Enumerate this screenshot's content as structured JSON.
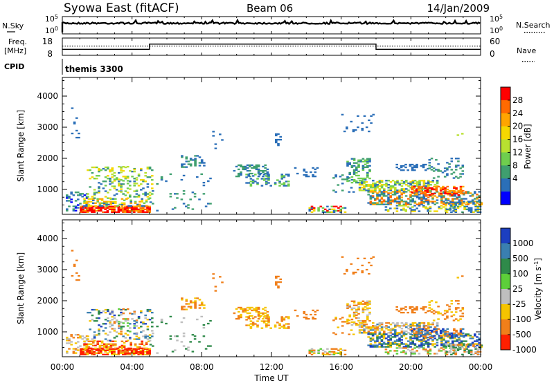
{
  "header": {
    "station": "Syowa East (fitACF)",
    "beam": "Beam 06",
    "date": "14/Jan/2009"
  },
  "left_labels": {
    "nsky": "N.Sky",
    "freq_line1": "Freq.",
    "freq_line2": "[MHz]",
    "cpid": "CPID"
  },
  "right_labels": {
    "nsearch": "N.Search",
    "nave": "Nave"
  },
  "noise_axis": {
    "left_ticks": [
      "10^5",
      "10^0"
    ],
    "right_ticks": [
      "10^5",
      "10^0"
    ]
  },
  "freq_axis": {
    "left_ticks": [
      "18",
      "8"
    ],
    "right_ticks": [
      "60",
      "0"
    ]
  },
  "cpid_label": "themis 3300",
  "chart_data": [
    {
      "type": "line",
      "title": "",
      "xlabel": "",
      "ylabel": "Freq. [MHz]",
      "x": [
        "00:00",
        "05:00",
        "05:00",
        "18:00",
        "18:00",
        "24:00"
      ],
      "series": [
        {
          "name": "Freq.",
          "values": [
            11.5,
            11.5,
            14.5,
            14.5,
            11.5,
            11.5
          ]
        },
        {
          "name": "Nave",
          "values": [
            32,
            32,
            32,
            32,
            32,
            32
          ]
        }
      ],
      "ylim": [
        8,
        18
      ]
    },
    {
      "type": "heatmap",
      "title": "",
      "xlabel": "Time UT",
      "ylabel": "Slant Range [km]",
      "x_ticks": [
        "00:00",
        "04:00",
        "08:00",
        "12:00",
        "16:00",
        "20:00",
        "00:00"
      ],
      "y_ticks": [
        "1000",
        "2000",
        "3000",
        "4000"
      ],
      "ylim": [
        200,
        4600
      ],
      "colorbar_label": "Power [dB]",
      "colorbar_ticks": [
        "28",
        "24",
        "20",
        "16",
        "12",
        "8",
        "4"
      ],
      "colorbar_colors": [
        "#ff0000",
        "#ff6a00",
        "#ffa500",
        "#f5d800",
        "#b8e030",
        "#6fce4e",
        "#3f9f6f",
        "#2b6fb8",
        "#0000ff"
      ]
    },
    {
      "type": "heatmap",
      "title": "",
      "xlabel": "Time UT",
      "ylabel": "Slant Range [km]",
      "x_ticks": [
        "00:00",
        "04:00",
        "08:00",
        "12:00",
        "16:00",
        "20:00",
        "00:00"
      ],
      "y_ticks": [
        "1000",
        "2000",
        "3000",
        "4000"
      ],
      "ylim": [
        200,
        4600
      ],
      "colorbar_label": "Velocity [m s^-1]",
      "colorbar_ticks": [
        "1000",
        "500",
        "100",
        "25",
        "-25",
        "-100",
        "-500",
        "-1000"
      ],
      "colorbar_colors": [
        "#1c3fc0",
        "#3a7fb0",
        "#2f8a4a",
        "#5dcf3a",
        "#bebebe",
        "#f5c400",
        "#f07f1a",
        "#ff2000"
      ]
    }
  ],
  "time_ticks": [
    "00:00",
    "04:00",
    "08:00",
    "12:00",
    "16:00",
    "20:00",
    "00:00"
  ],
  "time_label": "Time UT",
  "range_label": "Slant Range [km]",
  "range_ticks": [
    "1000",
    "2000",
    "3000",
    "4000"
  ],
  "power_bar": {
    "label": "Power [dB]",
    "ticks": [
      "28",
      "24",
      "20",
      "16",
      "12",
      "8",
      "4"
    ]
  },
  "velocity_bar": {
    "label": "Velocity [m s",
    "sup": "-1",
    "close": "]",
    "ticks": [
      "1000",
      "500",
      "100",
      "25",
      "-25",
      "-100",
      "-500",
      "-1000"
    ]
  },
  "colors": {
    "power": [
      "#ff0000",
      "#ff6a00",
      "#ffa500",
      "#f5d800",
      "#b8e030",
      "#6fce4e",
      "#3f9f6f",
      "#2b6fb8",
      "#0000ff"
    ],
    "velocity": [
      "#1c3fc0",
      "#3a7fb0",
      "#2f8a4a",
      "#5dcf3a",
      "#bebebe",
      "#f5c400",
      "#f07f1a",
      "#ff2000"
    ]
  }
}
